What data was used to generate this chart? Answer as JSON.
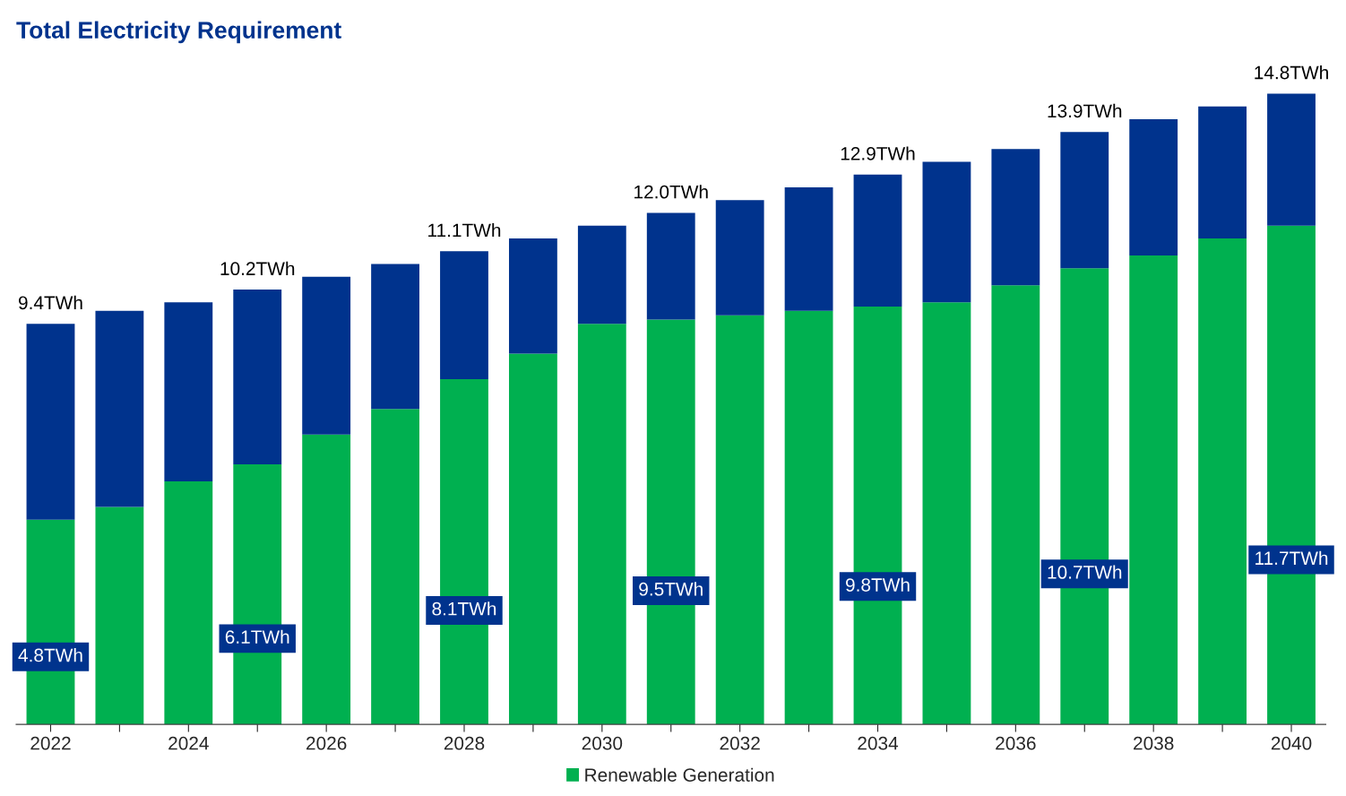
{
  "chart_data": {
    "type": "bar",
    "title": "Total Electricity Requirement",
    "stacked": true,
    "categories": [
      "2022",
      null,
      "2024",
      null,
      "2026",
      null,
      "2028",
      null,
      "2030",
      null,
      "2032",
      null,
      "2034",
      null,
      "2036",
      null,
      "2038",
      null,
      "2040"
    ],
    "series": [
      {
        "name": "Renewable Generation",
        "color": "#00b050",
        "values": [
          4.8,
          5.1,
          5.7,
          6.1,
          6.8,
          7.4,
          8.1,
          8.7,
          9.4,
          9.5,
          9.6,
          9.7,
          9.8,
          9.9,
          10.3,
          10.7,
          11.0,
          11.4,
          11.7
        ],
        "value_labels": [
          "4.8TWh",
          null,
          null,
          "6.1TWh",
          null,
          null,
          "8.1TWh",
          null,
          null,
          "9.5TWh",
          null,
          null,
          "9.8TWh",
          null,
          null,
          "10.7TWh",
          null,
          null,
          "11.7TWh"
        ]
      },
      {
        "color": "#00338d",
        "values": [
          4.6,
          4.6,
          4.2,
          4.1,
          3.7,
          3.4,
          3.0,
          2.7,
          2.3,
          2.5,
          2.7,
          2.9,
          3.1,
          3.3,
          3.2,
          3.2,
          3.2,
          3.1,
          3.1
        ]
      }
    ],
    "totals": [
      "9.4TWh",
      null,
      null,
      "10.2TWh",
      null,
      null,
      "11.1TWh",
      null,
      null,
      "12.0TWh",
      null,
      null,
      "12.9TWh",
      null,
      null,
      "13.9TWh",
      null,
      null,
      "14.8TWh"
    ],
    "tick_labels": "x",
    "grid": false,
    "legend": "bottom"
  }
}
